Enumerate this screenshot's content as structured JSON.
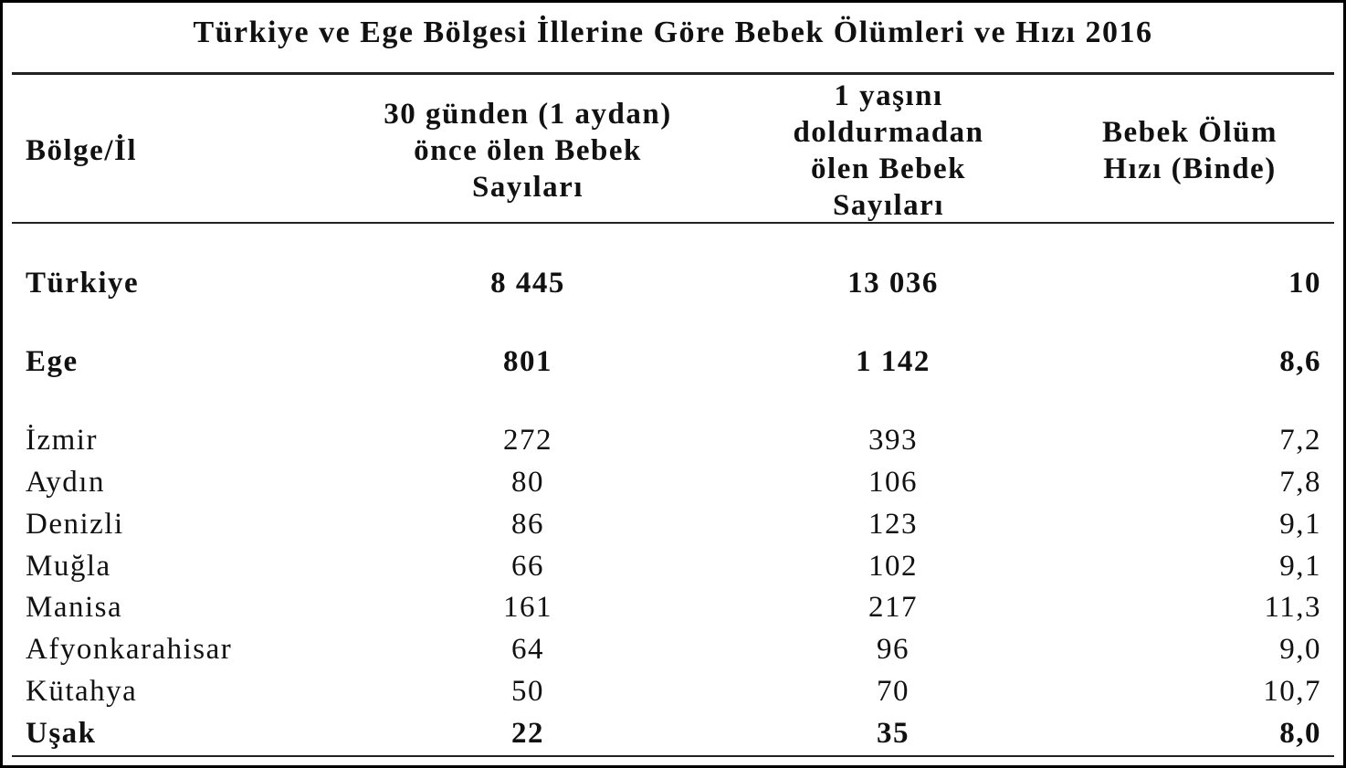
{
  "title": "Türkiye ve Ege Bölgesi İllerine Göre Bebek Ölümleri ve Hızı 2016",
  "table": {
    "header": [
      [
        "Bölge/İl"
      ],
      [
        "30 günden (1 aydan)",
        "önce ölen Bebek",
        "Sayıları"
      ],
      [
        "1 yaşını",
        "doldurmadan",
        "ölen Bebek",
        "Sayıları"
      ],
      [
        "Bebek Ölüm",
        "Hızı (Binde)"
      ]
    ],
    "rows": [
      [
        "Türkiye",
        "8 445",
        "13 036",
        "10"
      ],
      [
        "Ege",
        "801",
        "1 142",
        "8,6"
      ],
      [
        "İzmir",
        "272",
        "393",
        "7,2"
      ],
      [
        "Aydın",
        "80",
        "106",
        "7,8"
      ],
      [
        "Denizli",
        "86",
        "123",
        "9,1"
      ],
      [
        "Muğla",
        "66",
        "102",
        "9,1"
      ],
      [
        "Manisa",
        "161",
        "217",
        "11,3"
      ],
      [
        "Afyonkarahisar",
        "64",
        "96",
        "9,0"
      ],
      [
        "Kütahya",
        "50",
        "70",
        "10,7"
      ],
      [
        "Uşak",
        "22",
        "35",
        "8,0"
      ]
    ]
  }
}
